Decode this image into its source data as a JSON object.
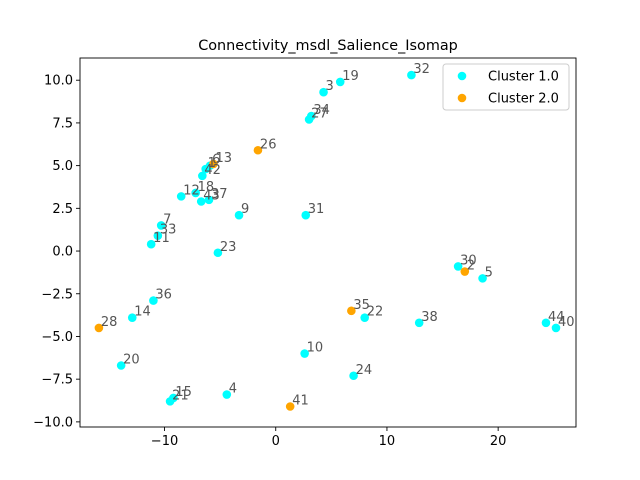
{
  "chart_data": {
    "type": "scatter",
    "title": "Connectivity_msdl_Salience_Isomap",
    "xlabel": "",
    "ylabel": "",
    "xlim": [
      -17.6,
      27.0
    ],
    "ylim": [
      -10.3,
      11.3
    ],
    "xticks": [
      -10,
      0,
      10,
      20
    ],
    "yticks": [
      -10.0,
      -7.5,
      -5.0,
      -2.5,
      0.0,
      2.5,
      5.0,
      7.5,
      10.0
    ],
    "xtick_labels": [
      "−10",
      "0",
      "10",
      "20"
    ],
    "ytick_labels": [
      "−10.0",
      "−7.5",
      "−5.0",
      "−2.5",
      "0.0",
      "2.5",
      "5.0",
      "7.5",
      "10.0"
    ],
    "grid": false,
    "legend_position": "top-right",
    "series": [
      {
        "name": "Cluster 1.0",
        "color": "#00ffff",
        "points": [
          {
            "x": 4.3,
            "y": 9.3,
            "label": "3"
          },
          {
            "x": 5.8,
            "y": 9.9,
            "label": "19"
          },
          {
            "x": 12.2,
            "y": 10.3,
            "label": "32"
          },
          {
            "x": 3.2,
            "y": 7.9,
            "label": "34"
          },
          {
            "x": 3.0,
            "y": 7.7,
            "label": "27"
          },
          {
            "x": -5.9,
            "y": 5.0,
            "label": "6"
          },
          {
            "x": -6.3,
            "y": 4.8,
            "label": "1"
          },
          {
            "x": -6.6,
            "y": 4.4,
            "label": "42"
          },
          {
            "x": -8.5,
            "y": 3.2,
            "label": "12"
          },
          {
            "x": -7.2,
            "y": 3.4,
            "label": "18"
          },
          {
            "x": -6.7,
            "y": 2.9,
            "label": "43"
          },
          {
            "x": -6.0,
            "y": 3.0,
            "label": "37"
          },
          {
            "x": -3.3,
            "y": 2.1,
            "label": "9"
          },
          {
            "x": 2.7,
            "y": 2.1,
            "label": "31"
          },
          {
            "x": -10.3,
            "y": 1.5,
            "label": "7"
          },
          {
            "x": -10.6,
            "y": 0.9,
            "label": "33"
          },
          {
            "x": -11.2,
            "y": 0.4,
            "label": "11"
          },
          {
            "x": -5.2,
            "y": -0.1,
            "label": "23"
          },
          {
            "x": 16.4,
            "y": -0.9,
            "label": "30"
          },
          {
            "x": 18.6,
            "y": -1.6,
            "label": "5"
          },
          {
            "x": -11.0,
            "y": -2.9,
            "label": "36"
          },
          {
            "x": -12.9,
            "y": -3.9,
            "label": "14"
          },
          {
            "x": 8.0,
            "y": -3.9,
            "label": "22"
          },
          {
            "x": 12.9,
            "y": -4.2,
            "label": "38"
          },
          {
            "x": 24.3,
            "y": -4.2,
            "label": "44"
          },
          {
            "x": 25.2,
            "y": -4.5,
            "label": "40"
          },
          {
            "x": 2.6,
            "y": -6.0,
            "label": "10"
          },
          {
            "x": -13.9,
            "y": -6.7,
            "label": "20"
          },
          {
            "x": 7.0,
            "y": -7.3,
            "label": "24"
          },
          {
            "x": -4.4,
            "y": -8.4,
            "label": "4"
          },
          {
            "x": -9.2,
            "y": -8.6,
            "label": "15"
          },
          {
            "x": -9.5,
            "y": -8.8,
            "label": "21"
          }
        ]
      },
      {
        "name": "Cluster 2.0",
        "color": "#ffa500",
        "points": [
          {
            "x": -5.6,
            "y": 5.1,
            "label": "13"
          },
          {
            "x": -1.6,
            "y": 5.9,
            "label": "26"
          },
          {
            "x": 17.0,
            "y": -1.2,
            "label": "2"
          },
          {
            "x": -15.9,
            "y": -4.5,
            "label": "28"
          },
          {
            "x": 6.8,
            "y": -3.5,
            "label": "35"
          },
          {
            "x": 1.3,
            "y": -9.1,
            "label": "41"
          }
        ]
      }
    ]
  }
}
